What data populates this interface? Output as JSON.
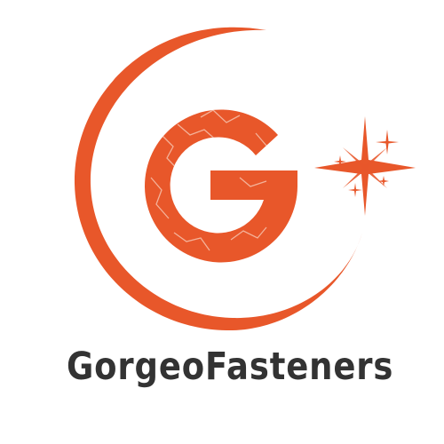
{
  "logo": {
    "brand_name": "GorgeoFasteners",
    "letter": "G",
    "accent_color": "#e8572a",
    "text_color": "#333333",
    "icons": [
      "crescent-ring-icon",
      "g-monogram-icon",
      "lightning-texture",
      "sparkle-star-icon"
    ]
  }
}
